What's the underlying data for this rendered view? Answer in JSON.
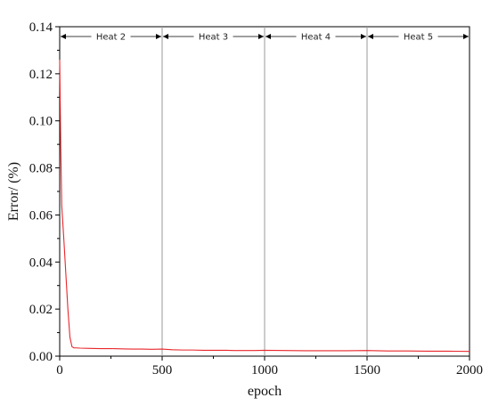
{
  "chart_data": {
    "type": "line",
    "title": "",
    "xlabel": "epoch",
    "ylabel": "Error/ (%)",
    "xlim": [
      0,
      2000
    ],
    "ylim": [
      0,
      0.14
    ],
    "x_ticks": [
      0,
      500,
      1000,
      1500,
      2000
    ],
    "x_tick_labels": [
      "0",
      "500",
      "1000",
      "1500",
      "2000"
    ],
    "y_ticks": [
      0.0,
      0.02,
      0.04,
      0.06,
      0.08,
      0.1,
      0.12,
      0.14
    ],
    "y_tick_labels": [
      "0.00",
      "0.02",
      "0.04",
      "0.06",
      "0.08",
      "0.10",
      "0.12",
      "0.14"
    ],
    "grid": false,
    "series": [
      {
        "color": "#e8262b",
        "x": [
          0,
          5,
          10,
          20,
          30,
          40,
          50,
          60,
          70,
          80,
          100,
          150,
          200,
          250,
          300,
          350,
          400,
          450,
          500,
          550,
          600,
          650,
          700,
          750,
          800,
          850,
          900,
          950,
          1000,
          1100,
          1200,
          1300,
          1400,
          1500,
          1600,
          1700,
          1800,
          1900,
          2000
        ],
        "y": [
          0.126,
          0.09,
          0.064,
          0.05,
          0.035,
          0.02,
          0.008,
          0.004,
          0.0035,
          0.0035,
          0.0034,
          0.0033,
          0.0032,
          0.0032,
          0.0031,
          0.003,
          0.003,
          0.0029,
          0.003,
          0.0027,
          0.0026,
          0.0026,
          0.0025,
          0.0025,
          0.0025,
          0.0024,
          0.0024,
          0.0024,
          0.0025,
          0.0024,
          0.0023,
          0.0023,
          0.0023,
          0.0024,
          0.0022,
          0.0022,
          0.0021,
          0.0021,
          0.002
        ]
      }
    ],
    "phase_separators": [
      500,
      1000,
      1500
    ],
    "phases": [
      {
        "label": "Heat 2",
        "start": 0,
        "end": 500
      },
      {
        "label": "Heat 3",
        "start": 500,
        "end": 1000
      },
      {
        "label": "Heat 4",
        "start": 1000,
        "end": 1500
      },
      {
        "label": "Heat 5",
        "start": 1500,
        "end": 2000
      }
    ],
    "colors": {
      "line": "#e8262b",
      "separator": "#9a9a9a",
      "axis": "#000000"
    }
  }
}
